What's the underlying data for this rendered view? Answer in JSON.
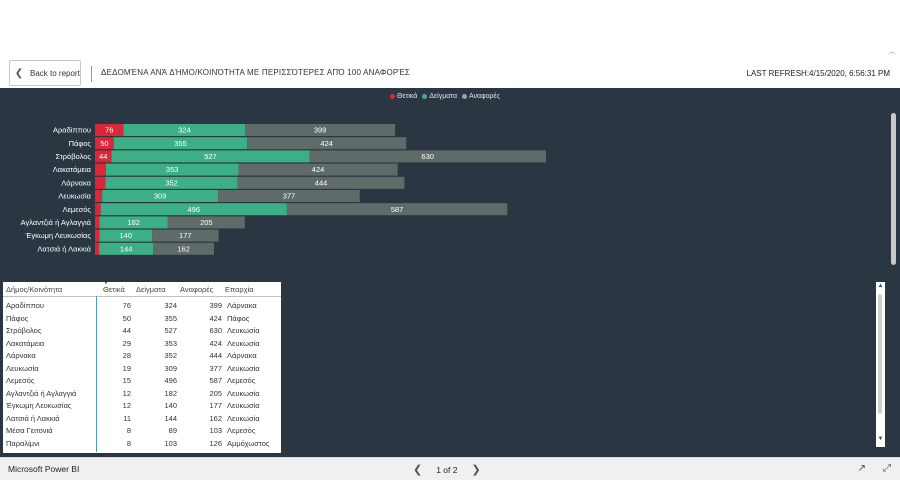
{
  "header": {
    "back_label": "Back to report",
    "title": "ΔΕΔΟΜΈΝΑ ΑΝΆ ΔΉΜΟ/ΚΟΙΝΌΤΗΤΑ ΜΕ ΠΕΡΙΣΣΌΤΕΡΕΣ ΑΠΌ 100 ΑΝΑΦΟΡΈΣ",
    "refresh": "LAST REFRESH:4/15/2020, 6:56:31 PM"
  },
  "chart_data": {
    "type": "bar",
    "orientation": "horizontal",
    "stacked": true,
    "legend_position": "top",
    "categories": [
      "Αραδίππου",
      "Πάφος",
      "Στρόβολος",
      "Λακατάμεια",
      "Λάρνακα",
      "Λευκωσία",
      "Λεμεσός",
      "Αγλαντζιά ή Αγλαγγιά",
      "Έγκωμη Λευκωσίας",
      "Λατσιά ή Λακκιά"
    ],
    "series": [
      {
        "name": "Θετικά",
        "color": "#d9283a",
        "values": [
          76,
          50,
          44,
          29,
          28,
          19,
          15,
          12,
          12,
          11
        ]
      },
      {
        "name": "Δείγματα",
        "color": "#3daf86",
        "values": [
          324,
          355,
          527,
          353,
          352,
          309,
          496,
          182,
          140,
          144
        ]
      },
      {
        "name": "Αναφορές",
        "color": "#5f6b69",
        "values": [
          399,
          424,
          630,
          424,
          444,
          377,
          587,
          205,
          177,
          162
        ]
      }
    ],
    "labels_on_segments": true
  },
  "table": {
    "columns": [
      "Δήμος/Κοινότητα",
      "Θετικά",
      "Δείγματα",
      "Αναφορές",
      "Επαρχία"
    ],
    "rows": [
      [
        "Αραδίππου",
        "76",
        "324",
        "399",
        "Λάρνακα"
      ],
      [
        "Πάφος",
        "50",
        "355",
        "424",
        "Πάφος"
      ],
      [
        "Στρόβολος",
        "44",
        "527",
        "630",
        "Λευκωσία"
      ],
      [
        "Λακατάμεια",
        "29",
        "353",
        "424",
        "Λευκωσία"
      ],
      [
        "Λάρνακα",
        "28",
        "352",
        "444",
        "Λάρνακα"
      ],
      [
        "Λευκωσία",
        "19",
        "309",
        "377",
        "Λευκωσία"
      ],
      [
        "Λεμεσός",
        "15",
        "496",
        "587",
        "Λεμεσός"
      ],
      [
        "Αγλαντζιά ή Αγλαγγιά",
        "12",
        "182",
        "205",
        "Λευκωσία"
      ],
      [
        "Έγκωμη Λευκωσίας",
        "12",
        "140",
        "177",
        "Λευκωσία"
      ],
      [
        "Λατσιά ή Λακκιά",
        "11",
        "144",
        "162",
        "Λευκωσία"
      ],
      [
        "Μέσα Γειτονιά",
        "8",
        "89",
        "103",
        "Λεμεσός"
      ],
      [
        "Παραλίμνι",
        "8",
        "103",
        "126",
        "Αμμόχωστος"
      ]
    ]
  },
  "footer": {
    "app_name": "Microsoft Power BI",
    "page_indicator": "1 of 2",
    "prev_icon": "chevron-left-icon",
    "next_icon": "chevron-right-icon",
    "share_icon": "share-icon",
    "expand_icon": "expand-icon"
  }
}
